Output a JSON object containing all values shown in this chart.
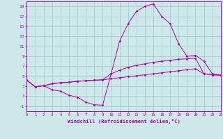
{
  "xlabel": "Windchill (Refroidissement éolien,°C)",
  "background_color": "#cce8e8",
  "grid_color": "#aacccc",
  "line_color": "#aa00aa",
  "x_hours": [
    0,
    1,
    2,
    3,
    4,
    5,
    6,
    7,
    8,
    9,
    10,
    11,
    12,
    13,
    14,
    15,
    16,
    17,
    18,
    19,
    20,
    21,
    22,
    23
  ],
  "line1": [
    4.2,
    2.9,
    3.1,
    2.3,
    2.0,
    1.2,
    0.8,
    -0.2,
    -0.7,
    -0.8,
    5.5,
    12.0,
    15.5,
    18.0,
    19.0,
    19.5,
    17.0,
    15.5,
    11.5,
    9.0,
    9.2,
    8.0,
    5.5,
    5.2
  ],
  "line2": [
    4.2,
    2.9,
    3.1,
    3.5,
    3.7,
    3.8,
    4.0,
    4.1,
    4.2,
    4.3,
    5.5,
    6.2,
    6.8,
    7.2,
    7.5,
    7.8,
    8.0,
    8.2,
    8.4,
    8.5,
    8.6,
    5.5,
    5.3,
    5.2
  ],
  "line3": [
    4.2,
    2.9,
    3.1,
    3.5,
    3.7,
    3.8,
    4.0,
    4.1,
    4.2,
    4.3,
    4.5,
    4.7,
    4.9,
    5.1,
    5.3,
    5.5,
    5.7,
    5.9,
    6.1,
    6.3,
    6.5,
    5.5,
    5.3,
    5.2
  ],
  "xlim": [
    0,
    23
  ],
  "ylim": [
    -2,
    20
  ],
  "yticks": [
    -1,
    1,
    3,
    5,
    7,
    9,
    11,
    13,
    15,
    17,
    19
  ],
  "xticks": [
    0,
    1,
    2,
    3,
    4,
    5,
    6,
    7,
    8,
    9,
    10,
    11,
    12,
    13,
    14,
    15,
    16,
    17,
    18,
    19,
    20,
    21,
    22,
    23
  ]
}
